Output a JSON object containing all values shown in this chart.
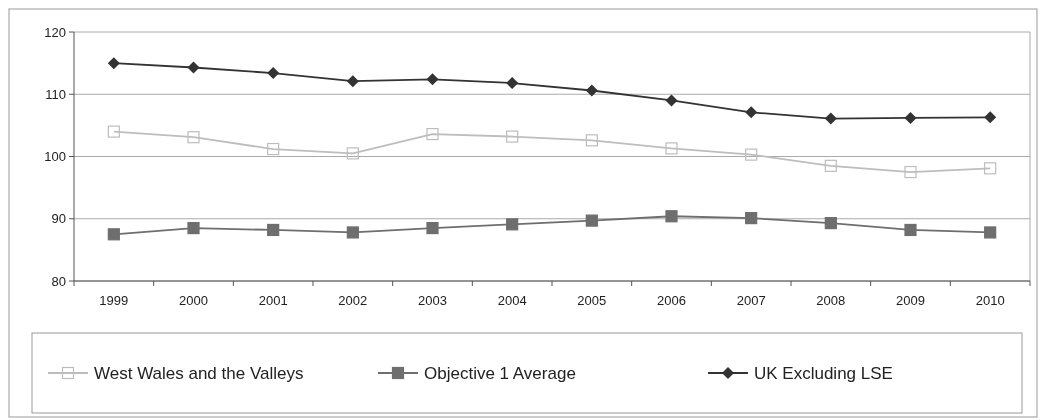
{
  "chart_data": {
    "type": "line",
    "categories": [
      "1999",
      "2000",
      "2001",
      "2002",
      "2003",
      "2004",
      "2005",
      "2006",
      "2007",
      "2008",
      "2009",
      "2010"
    ],
    "series": [
      {
        "name": "West Wales and the Valleys",
        "color": "#bdbdbd",
        "marker": "square",
        "values": [
          104,
          103.1,
          101.2,
          100.5,
          103.6,
          103.2,
          102.6,
          101.3,
          100.3,
          98.5,
          97.5,
          98.1
        ]
      },
      {
        "name": "Objective 1 Average",
        "color": "#6e6e6e",
        "marker": "square",
        "values": [
          87.5,
          88.5,
          88.2,
          87.8,
          88.5,
          89.1,
          89.7,
          90.4,
          90.1,
          89.3,
          88.2,
          87.8
        ]
      },
      {
        "name": "UK Excluding LSE",
        "color": "#333333",
        "marker": "diamond",
        "values": [
          115,
          114.3,
          113.4,
          112.1,
          112.4,
          111.8,
          110.6,
          109,
          107.1,
          106.1,
          106.2,
          106.3
        ]
      }
    ],
    "ylim": [
      80,
      120
    ],
    "yticks": [
      80,
      90,
      100,
      110,
      120
    ],
    "grid": "y",
    "legend": "bottom"
  }
}
